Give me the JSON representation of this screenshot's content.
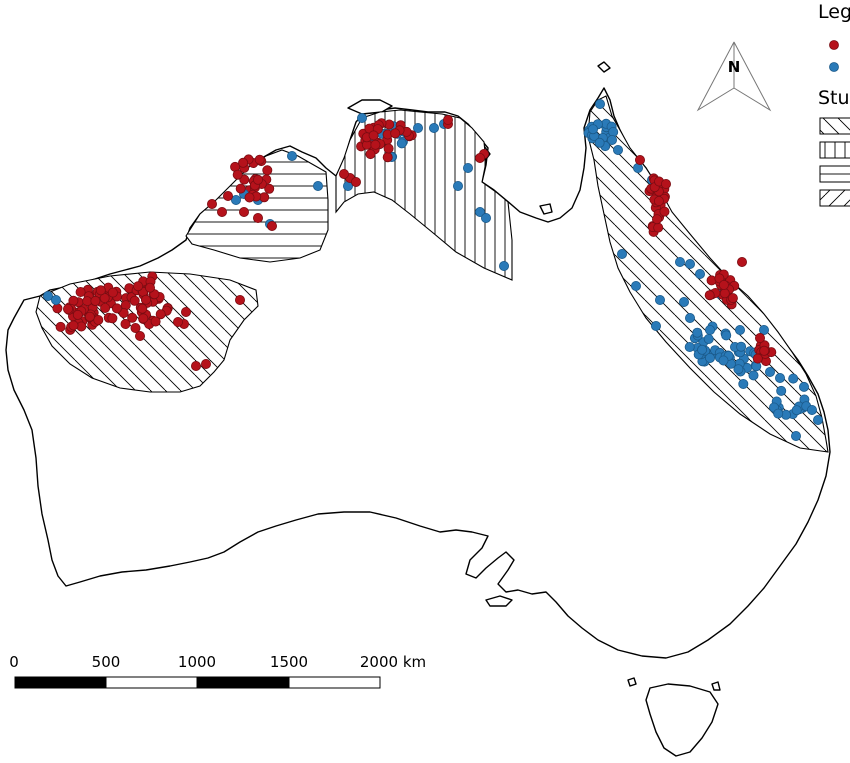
{
  "legend": {
    "title": "Leg",
    "section_title": "Stu",
    "point_colors": [
      "#b5121b",
      "#2a7ab8"
    ],
    "pattern_order": [
      "diag-down",
      "vertical",
      "horizontal",
      "diag-up"
    ]
  },
  "north_arrow": {
    "label": "N"
  },
  "scale_bar": {
    "labels": [
      "0",
      "500",
      "1000",
      "1500",
      "2000 km"
    ]
  },
  "colors": {
    "red": "#b5121b",
    "blue": "#2a7ab8",
    "red_stroke": "#7a0c12",
    "blue_stroke": "#1b5a8a"
  },
  "icons": {
    "north_arrow": "north-arrow-icon"
  }
}
